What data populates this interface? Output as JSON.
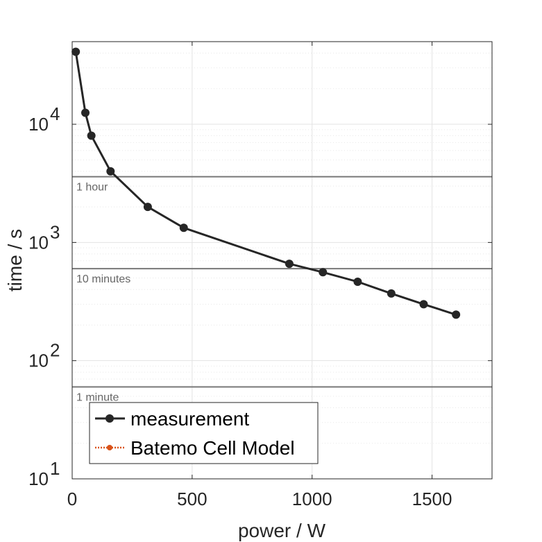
{
  "chart_data": {
    "type": "line",
    "xlabel": "power / W",
    "ylabel": "time / s",
    "xlim": [
      0,
      1750
    ],
    "ylim": [
      10,
      50000
    ],
    "yscale": "log",
    "xticks": [
      0,
      500,
      1000,
      1500
    ],
    "yticks": [
      {
        "value": 10,
        "base": "10",
        "exp": "1"
      },
      {
        "value": 100,
        "base": "10",
        "exp": "2"
      },
      {
        "value": 1000,
        "base": "10",
        "exp": "3"
      },
      {
        "value": 10000,
        "base": "10",
        "exp": "4"
      }
    ],
    "grid": true,
    "legend_position": "bottom-left",
    "series": [
      {
        "name": "measurement",
        "color": "#262626",
        "marker": "circle",
        "x": [
          15,
          55,
          80,
          160,
          315,
          465,
          905,
          1045,
          1190,
          1330,
          1465,
          1600
        ],
        "y": [
          41000,
          12500,
          8000,
          4000,
          2000,
          1330,
          660,
          560,
          465,
          370,
          300,
          245
        ]
      },
      {
        "name": "Batemo Cell Model",
        "color": "#D95319",
        "marker": "circle",
        "line_style": "dotted",
        "x": [],
        "y": []
      }
    ],
    "reference_lines": [
      {
        "value": 3600,
        "label": "1 hour"
      },
      {
        "value": 600,
        "label": "10 minutes"
      },
      {
        "value": 60,
        "label": "1 minute"
      }
    ],
    "reference_line_color": "#777777"
  }
}
